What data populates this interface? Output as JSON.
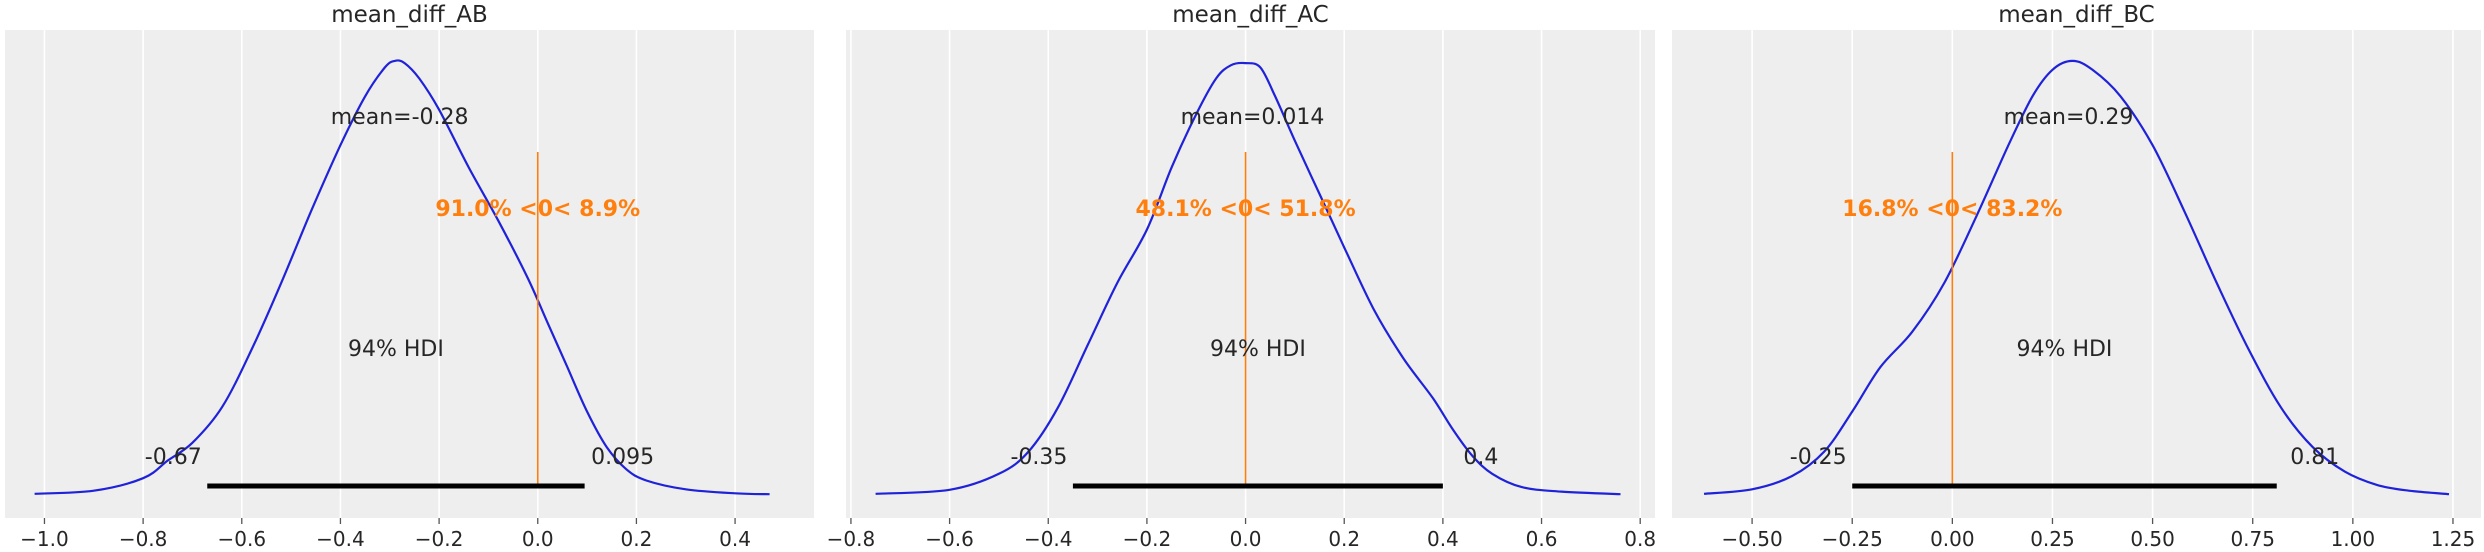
{
  "colors": {
    "density": "#1f22d8",
    "reference": "#ff7f0e",
    "hdi_bar": "#000000"
  },
  "chart_data": [
    {
      "type": "area",
      "title": "mean_diff_AB",
      "xlim": [
        -1.08,
        0.56
      ],
      "x_ticks": [
        -1.0,
        -0.8,
        -0.6,
        -0.4,
        -0.2,
        0.0,
        0.2,
        0.4
      ],
      "x_tick_labels": [
        "−1.0",
        "−0.8",
        "−0.6",
        "−0.4",
        "−0.2",
        "0.0",
        "0.2",
        "0.4"
      ],
      "grid": true,
      "mean_label": "mean=-0.28",
      "ref_val": 0,
      "ref_label": "91.0% <0< 8.9%",
      "hdi_label": "94% HDI",
      "hdi": [
        -0.67,
        0.095
      ],
      "hdi_low_label": "-0.67",
      "hdi_high_label": "0.095",
      "density": {
        "x": [
          -1.02,
          -0.9,
          -0.8,
          -0.75,
          -0.7,
          -0.64,
          -0.58,
          -0.52,
          -0.46,
          -0.4,
          -0.35,
          -0.31,
          -0.29,
          -0.27,
          -0.24,
          -0.2,
          -0.14,
          -0.08,
          -0.02,
          0.02,
          0.06,
          0.1,
          0.14,
          0.18,
          0.22,
          0.3,
          0.4,
          0.47
        ],
        "y": [
          0.005,
          0.012,
          0.04,
          0.08,
          0.12,
          0.2,
          0.33,
          0.48,
          0.64,
          0.79,
          0.9,
          0.965,
          0.98,
          0.975,
          0.94,
          0.87,
          0.74,
          0.62,
          0.49,
          0.39,
          0.29,
          0.19,
          0.11,
          0.06,
          0.035,
          0.015,
          0.006,
          0.004
        ]
      }
    },
    {
      "type": "area",
      "title": "mean_diff_AC",
      "xlim": [
        -0.81,
        0.83
      ],
      "x_ticks": [
        -0.8,
        -0.6,
        -0.4,
        -0.2,
        0.0,
        0.2,
        0.4,
        0.6,
        0.8
      ],
      "x_tick_labels": [
        "−0.8",
        "−0.6",
        "−0.4",
        "−0.2",
        "0.0",
        "0.2",
        "0.4",
        "0.6",
        "0.8"
      ],
      "grid": true,
      "mean_label": "mean=0.014",
      "ref_val": 0,
      "ref_label": "48.1% <0< 51.8%",
      "hdi_label": "94% HDI",
      "hdi": [
        -0.35,
        0.4
      ],
      "hdi_low_label": "-0.35",
      "hdi_high_label": "0.4",
      "density": {
        "x": [
          -0.75,
          -0.6,
          -0.5,
          -0.44,
          -0.38,
          -0.32,
          -0.26,
          -0.2,
          -0.15,
          -0.1,
          -0.06,
          -0.03,
          0.0,
          0.03,
          0.06,
          0.1,
          0.15,
          0.2,
          0.26,
          0.32,
          0.38,
          0.42,
          0.46,
          0.5,
          0.56,
          0.64,
          0.76
        ],
        "y": [
          0.005,
          0.014,
          0.05,
          0.1,
          0.2,
          0.34,
          0.48,
          0.6,
          0.74,
          0.86,
          0.94,
          0.97,
          0.975,
          0.965,
          0.9,
          0.8,
          0.68,
          0.56,
          0.42,
          0.31,
          0.22,
          0.15,
          0.09,
          0.05,
          0.02,
          0.01,
          0.004
        ]
      }
    },
    {
      "type": "area",
      "title": "mean_diff_BC",
      "xlim": [
        -0.7,
        1.32
      ],
      "x_ticks": [
        -0.5,
        -0.25,
        0.0,
        0.25,
        0.5,
        0.75,
        1.0,
        1.25
      ],
      "x_tick_labels": [
        "−0.50",
        "−0.25",
        "0.00",
        "0.25",
        "0.50",
        "0.75",
        "1.00",
        "1.25"
      ],
      "grid": true,
      "mean_label": "mean=0.29",
      "ref_val": 0,
      "ref_label": "16.8% <0< 83.2%",
      "hdi_label": "94% HDI",
      "hdi": [
        -0.25,
        0.81
      ],
      "hdi_low_label": "-0.25",
      "hdi_high_label": "0.81",
      "density": {
        "x": [
          -0.62,
          -0.5,
          -0.4,
          -0.32,
          -0.25,
          -0.18,
          -0.1,
          -0.02,
          0.06,
          0.14,
          0.2,
          0.25,
          0.3,
          0.35,
          0.42,
          0.5,
          0.58,
          0.66,
          0.74,
          0.82,
          0.9,
          0.98,
          1.06,
          1.14,
          1.24
        ],
        "y": [
          0.005,
          0.015,
          0.045,
          0.1,
          0.19,
          0.29,
          0.37,
          0.48,
          0.63,
          0.79,
          0.9,
          0.96,
          0.98,
          0.96,
          0.9,
          0.79,
          0.64,
          0.48,
          0.33,
          0.2,
          0.11,
          0.055,
          0.025,
          0.012,
          0.004
        ]
      }
    }
  ]
}
